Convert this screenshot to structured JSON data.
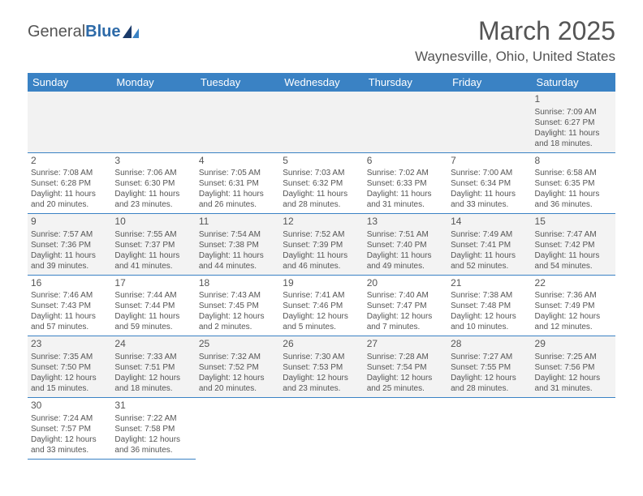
{
  "logo": {
    "part1": "General",
    "part2": "Blue"
  },
  "title": "March 2025",
  "location": "Waynesville, Ohio, United States",
  "colors": {
    "header_bg": "#3a82c4",
    "header_text": "#ffffff",
    "border": "#3a82c4",
    "row_alt": "#f5f5f5",
    "text": "#555555",
    "logo_blue": "#2d6aa8"
  },
  "day_headers": [
    "Sunday",
    "Monday",
    "Tuesday",
    "Wednesday",
    "Thursday",
    "Friday",
    "Saturday"
  ],
  "weeks": [
    [
      null,
      null,
      null,
      null,
      null,
      null,
      {
        "n": "1",
        "sr": "Sunrise: 7:09 AM",
        "ss": "Sunset: 6:27 PM",
        "d1": "Daylight: 11 hours",
        "d2": "and 18 minutes."
      }
    ],
    [
      {
        "n": "2",
        "sr": "Sunrise: 7:08 AM",
        "ss": "Sunset: 6:28 PM",
        "d1": "Daylight: 11 hours",
        "d2": "and 20 minutes."
      },
      {
        "n": "3",
        "sr": "Sunrise: 7:06 AM",
        "ss": "Sunset: 6:30 PM",
        "d1": "Daylight: 11 hours",
        "d2": "and 23 minutes."
      },
      {
        "n": "4",
        "sr": "Sunrise: 7:05 AM",
        "ss": "Sunset: 6:31 PM",
        "d1": "Daylight: 11 hours",
        "d2": "and 26 minutes."
      },
      {
        "n": "5",
        "sr": "Sunrise: 7:03 AM",
        "ss": "Sunset: 6:32 PM",
        "d1": "Daylight: 11 hours",
        "d2": "and 28 minutes."
      },
      {
        "n": "6",
        "sr": "Sunrise: 7:02 AM",
        "ss": "Sunset: 6:33 PM",
        "d1": "Daylight: 11 hours",
        "d2": "and 31 minutes."
      },
      {
        "n": "7",
        "sr": "Sunrise: 7:00 AM",
        "ss": "Sunset: 6:34 PM",
        "d1": "Daylight: 11 hours",
        "d2": "and 33 minutes."
      },
      {
        "n": "8",
        "sr": "Sunrise: 6:58 AM",
        "ss": "Sunset: 6:35 PM",
        "d1": "Daylight: 11 hours",
        "d2": "and 36 minutes."
      }
    ],
    [
      {
        "n": "9",
        "sr": "Sunrise: 7:57 AM",
        "ss": "Sunset: 7:36 PM",
        "d1": "Daylight: 11 hours",
        "d2": "and 39 minutes."
      },
      {
        "n": "10",
        "sr": "Sunrise: 7:55 AM",
        "ss": "Sunset: 7:37 PM",
        "d1": "Daylight: 11 hours",
        "d2": "and 41 minutes."
      },
      {
        "n": "11",
        "sr": "Sunrise: 7:54 AM",
        "ss": "Sunset: 7:38 PM",
        "d1": "Daylight: 11 hours",
        "d2": "and 44 minutes."
      },
      {
        "n": "12",
        "sr": "Sunrise: 7:52 AM",
        "ss": "Sunset: 7:39 PM",
        "d1": "Daylight: 11 hours",
        "d2": "and 46 minutes."
      },
      {
        "n": "13",
        "sr": "Sunrise: 7:51 AM",
        "ss": "Sunset: 7:40 PM",
        "d1": "Daylight: 11 hours",
        "d2": "and 49 minutes."
      },
      {
        "n": "14",
        "sr": "Sunrise: 7:49 AM",
        "ss": "Sunset: 7:41 PM",
        "d1": "Daylight: 11 hours",
        "d2": "and 52 minutes."
      },
      {
        "n": "15",
        "sr": "Sunrise: 7:47 AM",
        "ss": "Sunset: 7:42 PM",
        "d1": "Daylight: 11 hours",
        "d2": "and 54 minutes."
      }
    ],
    [
      {
        "n": "16",
        "sr": "Sunrise: 7:46 AM",
        "ss": "Sunset: 7:43 PM",
        "d1": "Daylight: 11 hours",
        "d2": "and 57 minutes."
      },
      {
        "n": "17",
        "sr": "Sunrise: 7:44 AM",
        "ss": "Sunset: 7:44 PM",
        "d1": "Daylight: 11 hours",
        "d2": "and 59 minutes."
      },
      {
        "n": "18",
        "sr": "Sunrise: 7:43 AM",
        "ss": "Sunset: 7:45 PM",
        "d1": "Daylight: 12 hours",
        "d2": "and 2 minutes."
      },
      {
        "n": "19",
        "sr": "Sunrise: 7:41 AM",
        "ss": "Sunset: 7:46 PM",
        "d1": "Daylight: 12 hours",
        "d2": "and 5 minutes."
      },
      {
        "n": "20",
        "sr": "Sunrise: 7:40 AM",
        "ss": "Sunset: 7:47 PM",
        "d1": "Daylight: 12 hours",
        "d2": "and 7 minutes."
      },
      {
        "n": "21",
        "sr": "Sunrise: 7:38 AM",
        "ss": "Sunset: 7:48 PM",
        "d1": "Daylight: 12 hours",
        "d2": "and 10 minutes."
      },
      {
        "n": "22",
        "sr": "Sunrise: 7:36 AM",
        "ss": "Sunset: 7:49 PM",
        "d1": "Daylight: 12 hours",
        "d2": "and 12 minutes."
      }
    ],
    [
      {
        "n": "23",
        "sr": "Sunrise: 7:35 AM",
        "ss": "Sunset: 7:50 PM",
        "d1": "Daylight: 12 hours",
        "d2": "and 15 minutes."
      },
      {
        "n": "24",
        "sr": "Sunrise: 7:33 AM",
        "ss": "Sunset: 7:51 PM",
        "d1": "Daylight: 12 hours",
        "d2": "and 18 minutes."
      },
      {
        "n": "25",
        "sr": "Sunrise: 7:32 AM",
        "ss": "Sunset: 7:52 PM",
        "d1": "Daylight: 12 hours",
        "d2": "and 20 minutes."
      },
      {
        "n": "26",
        "sr": "Sunrise: 7:30 AM",
        "ss": "Sunset: 7:53 PM",
        "d1": "Daylight: 12 hours",
        "d2": "and 23 minutes."
      },
      {
        "n": "27",
        "sr": "Sunrise: 7:28 AM",
        "ss": "Sunset: 7:54 PM",
        "d1": "Daylight: 12 hours",
        "d2": "and 25 minutes."
      },
      {
        "n": "28",
        "sr": "Sunrise: 7:27 AM",
        "ss": "Sunset: 7:55 PM",
        "d1": "Daylight: 12 hours",
        "d2": "and 28 minutes."
      },
      {
        "n": "29",
        "sr": "Sunrise: 7:25 AM",
        "ss": "Sunset: 7:56 PM",
        "d1": "Daylight: 12 hours",
        "d2": "and 31 minutes."
      }
    ],
    [
      {
        "n": "30",
        "sr": "Sunrise: 7:24 AM",
        "ss": "Sunset: 7:57 PM",
        "d1": "Daylight: 12 hours",
        "d2": "and 33 minutes."
      },
      {
        "n": "31",
        "sr": "Sunrise: 7:22 AM",
        "ss": "Sunset: 7:58 PM",
        "d1": "Daylight: 12 hours",
        "d2": "and 36 minutes."
      },
      null,
      null,
      null,
      null,
      null
    ]
  ]
}
